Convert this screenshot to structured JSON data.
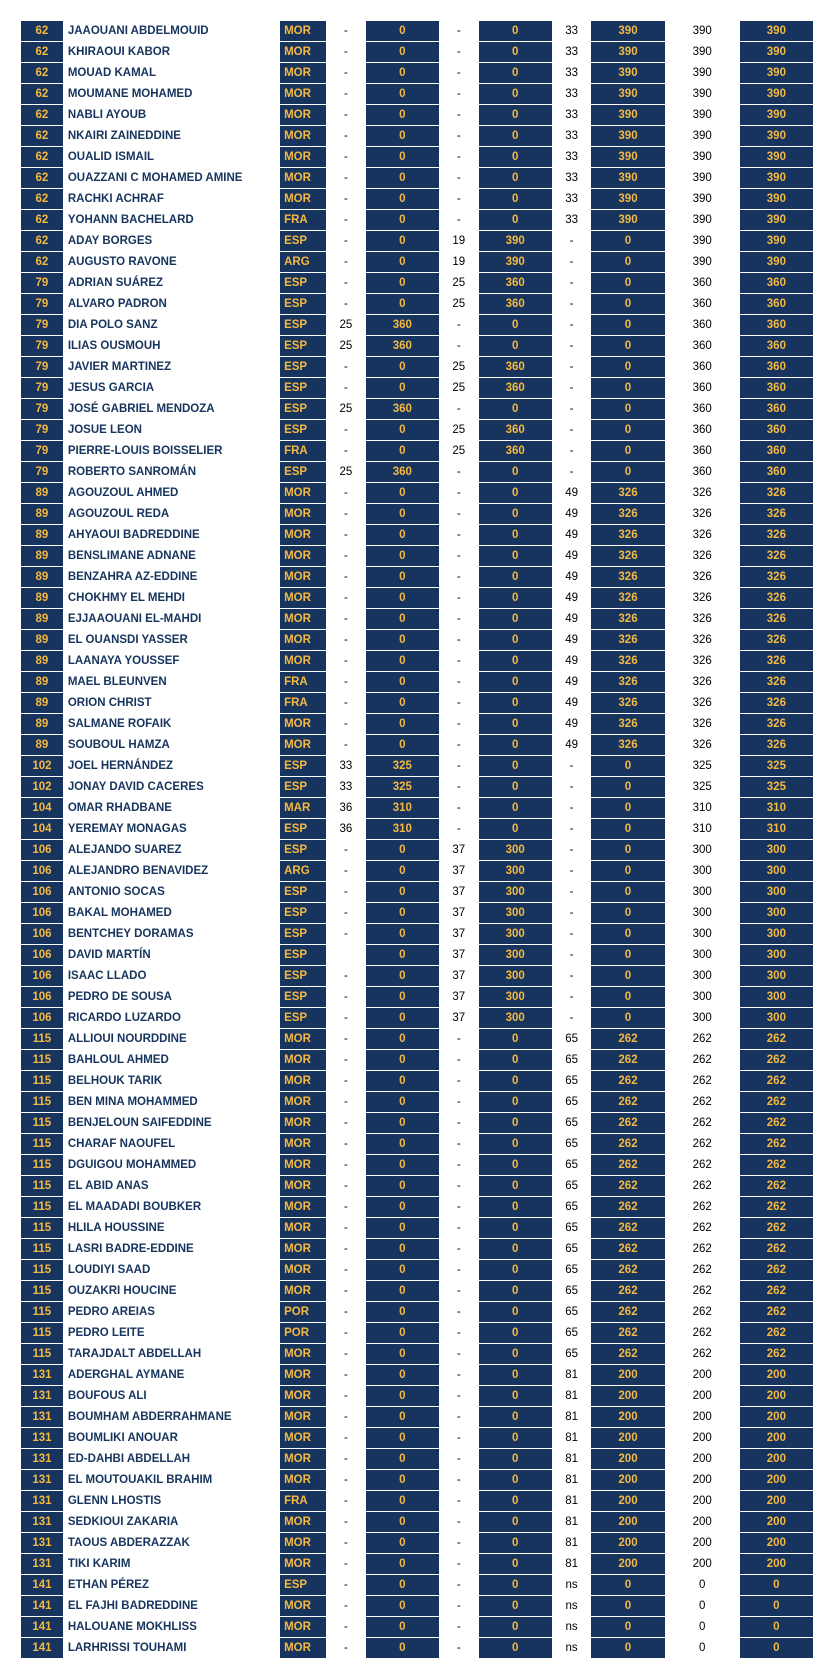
{
  "rows": [
    {
      "rank": "62",
      "name": "JAAOUANI ABDELMOUID",
      "ctry": "MOR",
      "n1": "-",
      "p1": "0",
      "n2": "-",
      "p2": "0",
      "n3": "33",
      "p3": "390",
      "tot1": "390",
      "tot2": "390"
    },
    {
      "rank": "62",
      "name": "KHIRAOUI KABOR",
      "ctry": "MOR",
      "n1": "-",
      "p1": "0",
      "n2": "-",
      "p2": "0",
      "n3": "33",
      "p3": "390",
      "tot1": "390",
      "tot2": "390"
    },
    {
      "rank": "62",
      "name": "MOUAD KAMAL",
      "ctry": "MOR",
      "n1": "-",
      "p1": "0",
      "n2": "-",
      "p2": "0",
      "n3": "33",
      "p3": "390",
      "tot1": "390",
      "tot2": "390"
    },
    {
      "rank": "62",
      "name": "MOUMANE MOHAMED",
      "ctry": "MOR",
      "n1": "-",
      "p1": "0",
      "n2": "-",
      "p2": "0",
      "n3": "33",
      "p3": "390",
      "tot1": "390",
      "tot2": "390"
    },
    {
      "rank": "62",
      "name": "NABLI AYOUB",
      "ctry": "MOR",
      "n1": "-",
      "p1": "0",
      "n2": "-",
      "p2": "0",
      "n3": "33",
      "p3": "390",
      "tot1": "390",
      "tot2": "390"
    },
    {
      "rank": "62",
      "name": "NKAIRI ZAINEDDINE",
      "ctry": "MOR",
      "n1": "-",
      "p1": "0",
      "n2": "-",
      "p2": "0",
      "n3": "33",
      "p3": "390",
      "tot1": "390",
      "tot2": "390"
    },
    {
      "rank": "62",
      "name": "OUALID ISMAIL",
      "ctry": "MOR",
      "n1": "-",
      "p1": "0",
      "n2": "-",
      "p2": "0",
      "n3": "33",
      "p3": "390",
      "tot1": "390",
      "tot2": "390"
    },
    {
      "rank": "62",
      "name": "OUAZZANI C MOHAMED AMINE",
      "ctry": "MOR",
      "n1": "-",
      "p1": "0",
      "n2": "-",
      "p2": "0",
      "n3": "33",
      "p3": "390",
      "tot1": "390",
      "tot2": "390"
    },
    {
      "rank": "62",
      "name": "RACHKI ACHRAF",
      "ctry": "MOR",
      "n1": "-",
      "p1": "0",
      "n2": "-",
      "p2": "0",
      "n3": "33",
      "p3": "390",
      "tot1": "390",
      "tot2": "390"
    },
    {
      "rank": "62",
      "name": "YOHANN  BACHELARD",
      "ctry": "FRA",
      "n1": "-",
      "p1": "0",
      "n2": "-",
      "p2": "0",
      "n3": "33",
      "p3": "390",
      "tot1": "390",
      "tot2": "390"
    },
    {
      "rank": "62",
      "name": "ADAY BORGES",
      "ctry": "ESP",
      "n1": "-",
      "p1": "0",
      "n2": "19",
      "p2": "390",
      "n3": "-",
      "p3": "0",
      "tot1": "390",
      "tot2": "390"
    },
    {
      "rank": "62",
      "name": "AUGUSTO RAVONE",
      "ctry": "ARG",
      "n1": "-",
      "p1": "0",
      "n2": "19",
      "p2": "390",
      "n3": "-",
      "p3": "0",
      "tot1": "390",
      "tot2": "390"
    },
    {
      "rank": "79",
      "name": "ADRIAN SUÁREZ",
      "ctry": "ESP",
      "n1": "-",
      "p1": "0",
      "n2": "25",
      "p2": "360",
      "n3": "-",
      "p3": "0",
      "tot1": "360",
      "tot2": "360"
    },
    {
      "rank": "79",
      "name": "ALVARO PADRON",
      "ctry": "ESP",
      "n1": "-",
      "p1": "0",
      "n2": "25",
      "p2": "360",
      "n3": "-",
      "p3": "0",
      "tot1": "360",
      "tot2": "360"
    },
    {
      "rank": "79",
      "name": "DIA POLO SANZ",
      "ctry": "ESP",
      "n1": "25",
      "p1": "360",
      "n2": "-",
      "p2": "0",
      "n3": "-",
      "p3": "0",
      "tot1": "360",
      "tot2": "360"
    },
    {
      "rank": "79",
      "name": "ILIAS OUSMOUH",
      "ctry": "ESP",
      "n1": "25",
      "p1": "360",
      "n2": "-",
      "p2": "0",
      "n3": "-",
      "p3": "0",
      "tot1": "360",
      "tot2": "360"
    },
    {
      "rank": "79",
      "name": "JAVIER MARTINEZ",
      "ctry": "ESP",
      "n1": "-",
      "p1": "0",
      "n2": "25",
      "p2": "360",
      "n3": "-",
      "p3": "0",
      "tot1": "360",
      "tot2": "360"
    },
    {
      "rank": "79",
      "name": "JESUS GARCIA",
      "ctry": "ESP",
      "n1": "-",
      "p1": "0",
      "n2": "25",
      "p2": "360",
      "n3": "-",
      "p3": "0",
      "tot1": "360",
      "tot2": "360"
    },
    {
      "rank": "79",
      "name": "JOSÉ GABRIEL MENDOZA",
      "ctry": "ESP",
      "n1": "25",
      "p1": "360",
      "n2": "-",
      "p2": "0",
      "n3": "-",
      "p3": "0",
      "tot1": "360",
      "tot2": "360"
    },
    {
      "rank": "79",
      "name": "JOSUE LEON",
      "ctry": "ESP",
      "n1": "-",
      "p1": "0",
      "n2": "25",
      "p2": "360",
      "n3": "-",
      "p3": "0",
      "tot1": "360",
      "tot2": "360"
    },
    {
      "rank": "79",
      "name": "PIERRE-LOUIS BOISSELIER",
      "ctry": "FRA",
      "n1": "-",
      "p1": "0",
      "n2": "25",
      "p2": "360",
      "n3": "-",
      "p3": "0",
      "tot1": "360",
      "tot2": "360"
    },
    {
      "rank": "79",
      "name": "ROBERTO SANROMÁN",
      "ctry": "ESP",
      "n1": "25",
      "p1": "360",
      "n2": "-",
      "p2": "0",
      "n3": "-",
      "p3": "0",
      "tot1": "360",
      "tot2": "360"
    },
    {
      "rank": "89",
      "name": "AGOUZOUL AHMED",
      "ctry": "MOR",
      "n1": "-",
      "p1": "0",
      "n2": "-",
      "p2": "0",
      "n3": "49",
      "p3": "326",
      "tot1": "326",
      "tot2": "326"
    },
    {
      "rank": "89",
      "name": "AGOUZOUL REDA",
      "ctry": "MOR",
      "n1": "-",
      "p1": "0",
      "n2": "-",
      "p2": "0",
      "n3": "49",
      "p3": "326",
      "tot1": "326",
      "tot2": "326"
    },
    {
      "rank": "89",
      "name": "AHYAOUI BADREDDINE",
      "ctry": "MOR",
      "n1": "-",
      "p1": "0",
      "n2": "-",
      "p2": "0",
      "n3": "49",
      "p3": "326",
      "tot1": "326",
      "tot2": "326"
    },
    {
      "rank": "89",
      "name": "BENSLIMANE ADNANE",
      "ctry": "MOR",
      "n1": "-",
      "p1": "0",
      "n2": "-",
      "p2": "0",
      "n3": "49",
      "p3": "326",
      "tot1": "326",
      "tot2": "326"
    },
    {
      "rank": "89",
      "name": "BENZAHRA AZ-EDDINE",
      "ctry": "MOR",
      "n1": "-",
      "p1": "0",
      "n2": "-",
      "p2": "0",
      "n3": "49",
      "p3": "326",
      "tot1": "326",
      "tot2": "326"
    },
    {
      "rank": "89",
      "name": "CHOKHMY EL MEHDI",
      "ctry": "MOR",
      "n1": "-",
      "p1": "0",
      "n2": "-",
      "p2": "0",
      "n3": "49",
      "p3": "326",
      "tot1": "326",
      "tot2": "326"
    },
    {
      "rank": "89",
      "name": "EJJAAOUANI EL-MAHDI",
      "ctry": "MOR",
      "n1": "-",
      "p1": "0",
      "n2": "-",
      "p2": "0",
      "n3": "49",
      "p3": "326",
      "tot1": "326",
      "tot2": "326"
    },
    {
      "rank": "89",
      "name": "EL OUANSDI YASSER",
      "ctry": "MOR",
      "n1": "-",
      "p1": "0",
      "n2": "-",
      "p2": "0",
      "n3": "49",
      "p3": "326",
      "tot1": "326",
      "tot2": "326"
    },
    {
      "rank": "89",
      "name": "LAANAYA YOUSSEF",
      "ctry": "MOR",
      "n1": "-",
      "p1": "0",
      "n2": "-",
      "p2": "0",
      "n3": "49",
      "p3": "326",
      "tot1": "326",
      "tot2": "326"
    },
    {
      "rank": "89",
      "name": "MAEL BLEUNVEN",
      "ctry": "FRA",
      "n1": "-",
      "p1": "0",
      "n2": "-",
      "p2": "0",
      "n3": "49",
      "p3": "326",
      "tot1": "326",
      "tot2": "326"
    },
    {
      "rank": "89",
      "name": "ORION CHRIST",
      "ctry": "FRA",
      "n1": "-",
      "p1": "0",
      "n2": "-",
      "p2": "0",
      "n3": "49",
      "p3": "326",
      "tot1": "326",
      "tot2": "326"
    },
    {
      "rank": "89",
      "name": "SALMANE ROFAIK",
      "ctry": "MOR",
      "n1": "-",
      "p1": "0",
      "n2": "-",
      "p2": "0",
      "n3": "49",
      "p3": "326",
      "tot1": "326",
      "tot2": "326"
    },
    {
      "rank": "89",
      "name": "SOUBOUL HAMZA",
      "ctry": "MOR",
      "n1": "-",
      "p1": "0",
      "n2": "-",
      "p2": "0",
      "n3": "49",
      "p3": "326",
      "tot1": "326",
      "tot2": "326"
    },
    {
      "rank": "102",
      "name": "JOEL HERNÁNDEZ",
      "ctry": "ESP",
      "n1": "33",
      "p1": "325",
      "n2": "-",
      "p2": "0",
      "n3": "-",
      "p3": "0",
      "tot1": "325",
      "tot2": "325"
    },
    {
      "rank": "102",
      "name": "JONAY DAVID CACERES",
      "ctry": "ESP",
      "n1": "33",
      "p1": "325",
      "n2": "-",
      "p2": "0",
      "n3": "-",
      "p3": "0",
      "tot1": "325",
      "tot2": "325"
    },
    {
      "rank": "104",
      "name": "OMAR RHADBANE",
      "ctry": "MAR",
      "n1": "36",
      "p1": "310",
      "n2": "-",
      "p2": "0",
      "n3": "-",
      "p3": "0",
      "tot1": "310",
      "tot2": "310"
    },
    {
      "rank": "104",
      "name": "YEREMAY MONAGAS",
      "ctry": "ESP",
      "n1": "36",
      "p1": "310",
      "n2": "-",
      "p2": "0",
      "n3": "-",
      "p3": "0",
      "tot1": "310",
      "tot2": "310"
    },
    {
      "rank": "106",
      "name": "ALEJANDO SUAREZ",
      "ctry": "ESP",
      "n1": "-",
      "p1": "0",
      "n2": "37",
      "p2": "300",
      "n3": "-",
      "p3": "0",
      "tot1": "300",
      "tot2": "300"
    },
    {
      "rank": "106",
      "name": "ALEJANDRO BENAVIDEZ",
      "ctry": "ARG",
      "n1": "-",
      "p1": "0",
      "n2": "37",
      "p2": "300",
      "n3": "-",
      "p3": "0",
      "tot1": "300",
      "tot2": "300"
    },
    {
      "rank": "106",
      "name": "ANTONIO SOCAS",
      "ctry": "ESP",
      "n1": "-",
      "p1": "0",
      "n2": "37",
      "p2": "300",
      "n3": "-",
      "p3": "0",
      "tot1": "300",
      "tot2": "300"
    },
    {
      "rank": "106",
      "name": "BAKAL MOHAMED",
      "ctry": "ESP",
      "n1": "-",
      "p1": "0",
      "n2": "37",
      "p2": "300",
      "n3": "-",
      "p3": "0",
      "tot1": "300",
      "tot2": "300"
    },
    {
      "rank": "106",
      "name": "BENTCHEY DORAMAS",
      "ctry": "ESP",
      "n1": "-",
      "p1": "0",
      "n2": "37",
      "p2": "300",
      "n3": "-",
      "p3": "0",
      "tot1": "300",
      "tot2": "300"
    },
    {
      "rank": "106",
      "name": "DAVID MARTÍN",
      "ctry": "ESP",
      "n1": "",
      "p1": "0",
      "n2": "37",
      "p2": "300",
      "n3": "-",
      "p3": "0",
      "tot1": "300",
      "tot2": "300"
    },
    {
      "rank": "106",
      "name": "ISAAC LLADO",
      "ctry": "ESP",
      "n1": "-",
      "p1": "0",
      "n2": "37",
      "p2": "300",
      "n3": "-",
      "p3": "0",
      "tot1": "300",
      "tot2": "300"
    },
    {
      "rank": "106",
      "name": "PEDRO DE SOUSA",
      "ctry": "ESP",
      "n1": "-",
      "p1": "0",
      "n2": "37",
      "p2": "300",
      "n3": "-",
      "p3": "0",
      "tot1": "300",
      "tot2": "300"
    },
    {
      "rank": "106",
      "name": "RICARDO LUZARDO",
      "ctry": "ESP",
      "n1": "-",
      "p1": "0",
      "n2": "37",
      "p2": "300",
      "n3": "-",
      "p3": "0",
      "tot1": "300",
      "tot2": "300"
    },
    {
      "rank": "115",
      "name": "ALLIOUI NOURDDINE",
      "ctry": "MOR",
      "n1": "-",
      "p1": "0",
      "n2": "-",
      "p2": "0",
      "n3": "65",
      "p3": "262",
      "tot1": "262",
      "tot2": "262"
    },
    {
      "rank": "115",
      "name": "BAHLOUL AHMED",
      "ctry": "MOR",
      "n1": "-",
      "p1": "0",
      "n2": "-",
      "p2": "0",
      "n3": "65",
      "p3": "262",
      "tot1": "262",
      "tot2": "262"
    },
    {
      "rank": "115",
      "name": "BELHOUK TARIK",
      "ctry": "MOR",
      "n1": "-",
      "p1": "0",
      "n2": "-",
      "p2": "0",
      "n3": "65",
      "p3": "262",
      "tot1": "262",
      "tot2": "262"
    },
    {
      "rank": "115",
      "name": "BEN MINA MOHAMMED",
      "ctry": "MOR",
      "n1": "-",
      "p1": "0",
      "n2": "-",
      "p2": "0",
      "n3": "65",
      "p3": "262",
      "tot1": "262",
      "tot2": "262"
    },
    {
      "rank": "115",
      "name": "BENJELOUN SAIFEDDINE",
      "ctry": "MOR",
      "n1": "-",
      "p1": "0",
      "n2": "-",
      "p2": "0",
      "n3": "65",
      "p3": "262",
      "tot1": "262",
      "tot2": "262"
    },
    {
      "rank": "115",
      "name": "CHARAF NAOUFEL",
      "ctry": "MOR",
      "n1": "-",
      "p1": "0",
      "n2": "-",
      "p2": "0",
      "n3": "65",
      "p3": "262",
      "tot1": "262",
      "tot2": "262"
    },
    {
      "rank": "115",
      "name": "DGUIGOU MOHAMMED",
      "ctry": "MOR",
      "n1": "-",
      "p1": "0",
      "n2": "-",
      "p2": "0",
      "n3": "65",
      "p3": "262",
      "tot1": "262",
      "tot2": "262"
    },
    {
      "rank": "115",
      "name": "EL ABID ANAS",
      "ctry": "MOR",
      "n1": "-",
      "p1": "0",
      "n2": "-",
      "p2": "0",
      "n3": "65",
      "p3": "262",
      "tot1": "262",
      "tot2": "262"
    },
    {
      "rank": "115",
      "name": "EL MAADADI  BOUBKER",
      "ctry": "MOR",
      "n1": "-",
      "p1": "0",
      "n2": "-",
      "p2": "0",
      "n3": "65",
      "p3": "262",
      "tot1": "262",
      "tot2": "262"
    },
    {
      "rank": "115",
      "name": "HLILA HOUSSINE",
      "ctry": "MOR",
      "n1": "-",
      "p1": "0",
      "n2": "-",
      "p2": "0",
      "n3": "65",
      "p3": "262",
      "tot1": "262",
      "tot2": "262"
    },
    {
      "rank": "115",
      "name": "LASRI BADRE-EDDINE",
      "ctry": "MOR",
      "n1": "-",
      "p1": "0",
      "n2": "-",
      "p2": "0",
      "n3": "65",
      "p3": "262",
      "tot1": "262",
      "tot2": "262"
    },
    {
      "rank": "115",
      "name": "LOUDIYI SAAD",
      "ctry": "MOR",
      "n1": "-",
      "p1": "0",
      "n2": "-",
      "p2": "0",
      "n3": "65",
      "p3": "262",
      "tot1": "262",
      "tot2": "262"
    },
    {
      "rank": "115",
      "name": "OUZAKRI HOUCINE",
      "ctry": "MOR",
      "n1": "-",
      "p1": "0",
      "n2": "-",
      "p2": "0",
      "n3": "65",
      "p3": "262",
      "tot1": "262",
      "tot2": "262"
    },
    {
      "rank": "115",
      "name": "PEDRO AREIAS",
      "ctry": "POR",
      "n1": "-",
      "p1": "0",
      "n2": "-",
      "p2": "0",
      "n3": "65",
      "p3": "262",
      "tot1": "262",
      "tot2": "262"
    },
    {
      "rank": "115",
      "name": "PEDRO LEITE",
      "ctry": "POR",
      "n1": "-",
      "p1": "0",
      "n2": "-",
      "p2": "0",
      "n3": "65",
      "p3": "262",
      "tot1": "262",
      "tot2": "262"
    },
    {
      "rank": "115",
      "name": "TARAJDALT ABDELLAH",
      "ctry": "MOR",
      "n1": "-",
      "p1": "0",
      "n2": "-",
      "p2": "0",
      "n3": "65",
      "p3": "262",
      "tot1": "262",
      "tot2": "262"
    },
    {
      "rank": "131",
      "name": "ADERGHAL AYMANE",
      "ctry": "MOR",
      "n1": "-",
      "p1": "0",
      "n2": "-",
      "p2": "0",
      "n3": "81",
      "p3": "200",
      "tot1": "200",
      "tot2": "200"
    },
    {
      "rank": "131",
      "name": "BOUFOUS ALI",
      "ctry": "MOR",
      "n1": "-",
      "p1": "0",
      "n2": "-",
      "p2": "0",
      "n3": "81",
      "p3": "200",
      "tot1": "200",
      "tot2": "200"
    },
    {
      "rank": "131",
      "name": "BOUMHAM ABDERRAHMANE",
      "ctry": "MOR",
      "n1": "-",
      "p1": "0",
      "n2": "-",
      "p2": "0",
      "n3": "81",
      "p3": "200",
      "tot1": "200",
      "tot2": "200"
    },
    {
      "rank": "131",
      "name": "BOUMLIKI ANOUAR",
      "ctry": "MOR",
      "n1": "-",
      "p1": "0",
      "n2": "-",
      "p2": "0",
      "n3": "81",
      "p3": "200",
      "tot1": "200",
      "tot2": "200"
    },
    {
      "rank": "131",
      "name": "ED-DAHBI ABDELLAH",
      "ctry": "MOR",
      "n1": "-",
      "p1": "0",
      "n2": "-",
      "p2": "0",
      "n3": "81",
      "p3": "200",
      "tot1": "200",
      "tot2": "200"
    },
    {
      "rank": "131",
      "name": "EL MOUTOUAKIL BRAHIM",
      "ctry": "MOR",
      "n1": "-",
      "p1": "0",
      "n2": "-",
      "p2": "0",
      "n3": "81",
      "p3": "200",
      "tot1": "200",
      "tot2": "200"
    },
    {
      "rank": "131",
      "name": "GLENN LHOSTIS",
      "ctry": "FRA",
      "n1": "-",
      "p1": "0",
      "n2": "-",
      "p2": "0",
      "n3": "81",
      "p3": "200",
      "tot1": "200",
      "tot2": "200"
    },
    {
      "rank": "131",
      "name": "SEDKIOUI ZAKARIA",
      "ctry": "MOR",
      "n1": "-",
      "p1": "0",
      "n2": "-",
      "p2": "0",
      "n3": "81",
      "p3": "200",
      "tot1": "200",
      "tot2": "200"
    },
    {
      "rank": "131",
      "name": "TAOUS ABDERAZZAK",
      "ctry": "MOR",
      "n1": "-",
      "p1": "0",
      "n2": "-",
      "p2": "0",
      "n3": "81",
      "p3": "200",
      "tot1": "200",
      "tot2": "200"
    },
    {
      "rank": "131",
      "name": "TIKI KARIM",
      "ctry": "MOR",
      "n1": "-",
      "p1": "0",
      "n2": "-",
      "p2": "0",
      "n3": "81",
      "p3": "200",
      "tot1": "200",
      "tot2": "200"
    },
    {
      "rank": "141",
      "name": "ETHAN PÉREZ",
      "ctry": "ESP",
      "n1": "-",
      "p1": "0",
      "n2": "-",
      "p2": "0",
      "n3": "ns",
      "p3": "0",
      "tot1": "0",
      "tot2": "0"
    },
    {
      "rank": "141",
      "name": "EL FAJHI BADREDDINE",
      "ctry": "MOR",
      "n1": "-",
      "p1": "0",
      "n2": "-",
      "p2": "0",
      "n3": "ns",
      "p3": "0",
      "tot1": "0",
      "tot2": "0"
    },
    {
      "rank": "141",
      "name": "HALOUANE MOKHLISS",
      "ctry": "MOR",
      "n1": "-",
      "p1": "0",
      "n2": "-",
      "p2": "0",
      "n3": "ns",
      "p3": "0",
      "tot1": "0",
      "tot2": "0"
    },
    {
      "rank": "141",
      "name": "LARHRISSI TOUHAMI",
      "ctry": "MOR",
      "n1": "-",
      "p1": "0",
      "n2": "-",
      "p2": "0",
      "n3": "ns",
      "p3": "0",
      "tot1": "0",
      "tot2": "0"
    }
  ]
}
